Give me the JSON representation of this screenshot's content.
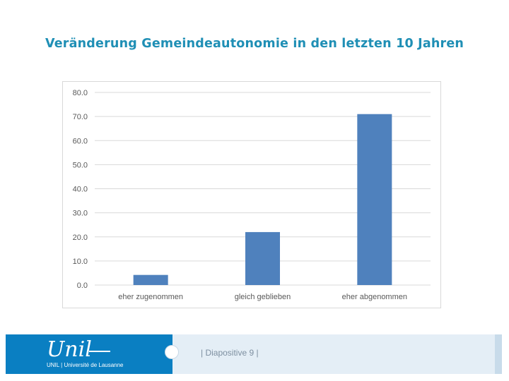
{
  "title": "Veränderung Gemeindeautonomie in den letzten 10 Jahren",
  "chart_data": {
    "type": "bar",
    "categories": [
      "eher zugenommen",
      "gleich geblieben",
      "eher abgenommen"
    ],
    "values": [
      4.2,
      22.0,
      71.0
    ],
    "ylim": [
      0,
      80
    ],
    "yticks": [
      "0.0",
      "10.0",
      "20.0",
      "30.0",
      "40.0",
      "50.0",
      "60.0",
      "70.0",
      "80.0"
    ],
    "grid": true,
    "bar_color": "#4f81bd"
  },
  "footer": {
    "logo_script": "Unil",
    "logo_text": "UNIL | Université de Lausanne",
    "slide_label": "| Diapositive 9 |",
    "brand_color": "#0a7fc2"
  }
}
